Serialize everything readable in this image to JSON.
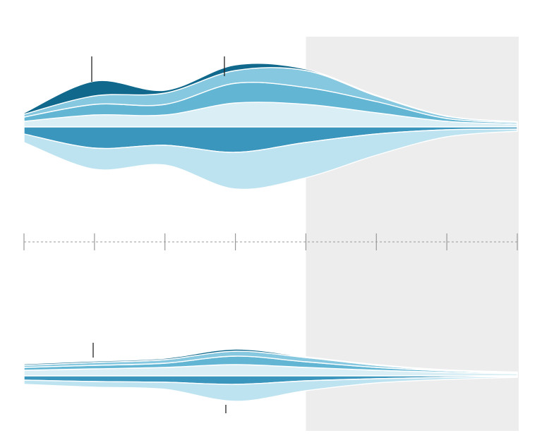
{
  "chart_data": [
    {
      "type": "stream",
      "categories": [
        null,
        null,
        null,
        null,
        null,
        null,
        null,
        null
      ],
      "ylim": [
        -100,
        100
      ],
      "highlight_from": 4,
      "series": [
        {
          "direction": "up",
          "color": "#d9eef5",
          "values": [
            8,
            17,
            17,
            34,
            32,
            20,
            8,
            4
          ]
        },
        {
          "direction": "up",
          "color": "#62b6d4",
          "values": [
            6,
            15,
            15,
            28,
            24,
            16,
            4,
            2
          ]
        },
        {
          "direction": "up",
          "color": "#86c8df",
          "values": [
            4,
            12,
            16,
            18,
            24,
            8,
            3,
            1
          ]
        },
        {
          "direction": "up",
          "color": "#10698c",
          "values": [
            2,
            21,
            4,
            8,
            2,
            1,
            0.5,
            0.5
          ]
        },
        {
          "direction": "down",
          "color": "#3a96bc",
          "values": [
            10,
            30,
            26,
            36,
            22,
            10,
            4,
            3
          ]
        },
        {
          "direction": "down",
          "color": "#bee3f0",
          "values": [
            12,
            30,
            28,
            52,
            50,
            30,
            10,
            3
          ]
        }
      ]
    },
    {
      "type": "stream",
      "categories": [
        null,
        null,
        null,
        null,
        null,
        null,
        null,
        null
      ],
      "ylim": [
        -60,
        60
      ],
      "series": [
        {
          "direction": "up",
          "color": "#d9eef5",
          "values": [
            8,
            10,
            12,
            16,
            12,
            8,
            5,
            3
          ]
        },
        {
          "direction": "up",
          "color": "#62b6d4",
          "values": [
            4,
            5,
            6,
            12,
            8,
            4,
            2,
            1
          ]
        },
        {
          "direction": "up",
          "color": "#86c8df",
          "values": [
            3,
            4,
            5,
            7,
            6,
            3,
            1,
            1
          ]
        },
        {
          "direction": "up",
          "color": "#10698c",
          "values": [
            2,
            2,
            2,
            3,
            1,
            1,
            0.5,
            0.5
          ]
        },
        {
          "direction": "down",
          "color": "#3a96bc",
          "values": [
            6,
            8,
            9,
            12,
            7,
            4,
            2,
            1
          ]
        },
        {
          "direction": "down",
          "color": "#bee3f0",
          "values": [
            6,
            8,
            10,
            24,
            14,
            6,
            3,
            1
          ]
        }
      ]
    }
  ]
}
